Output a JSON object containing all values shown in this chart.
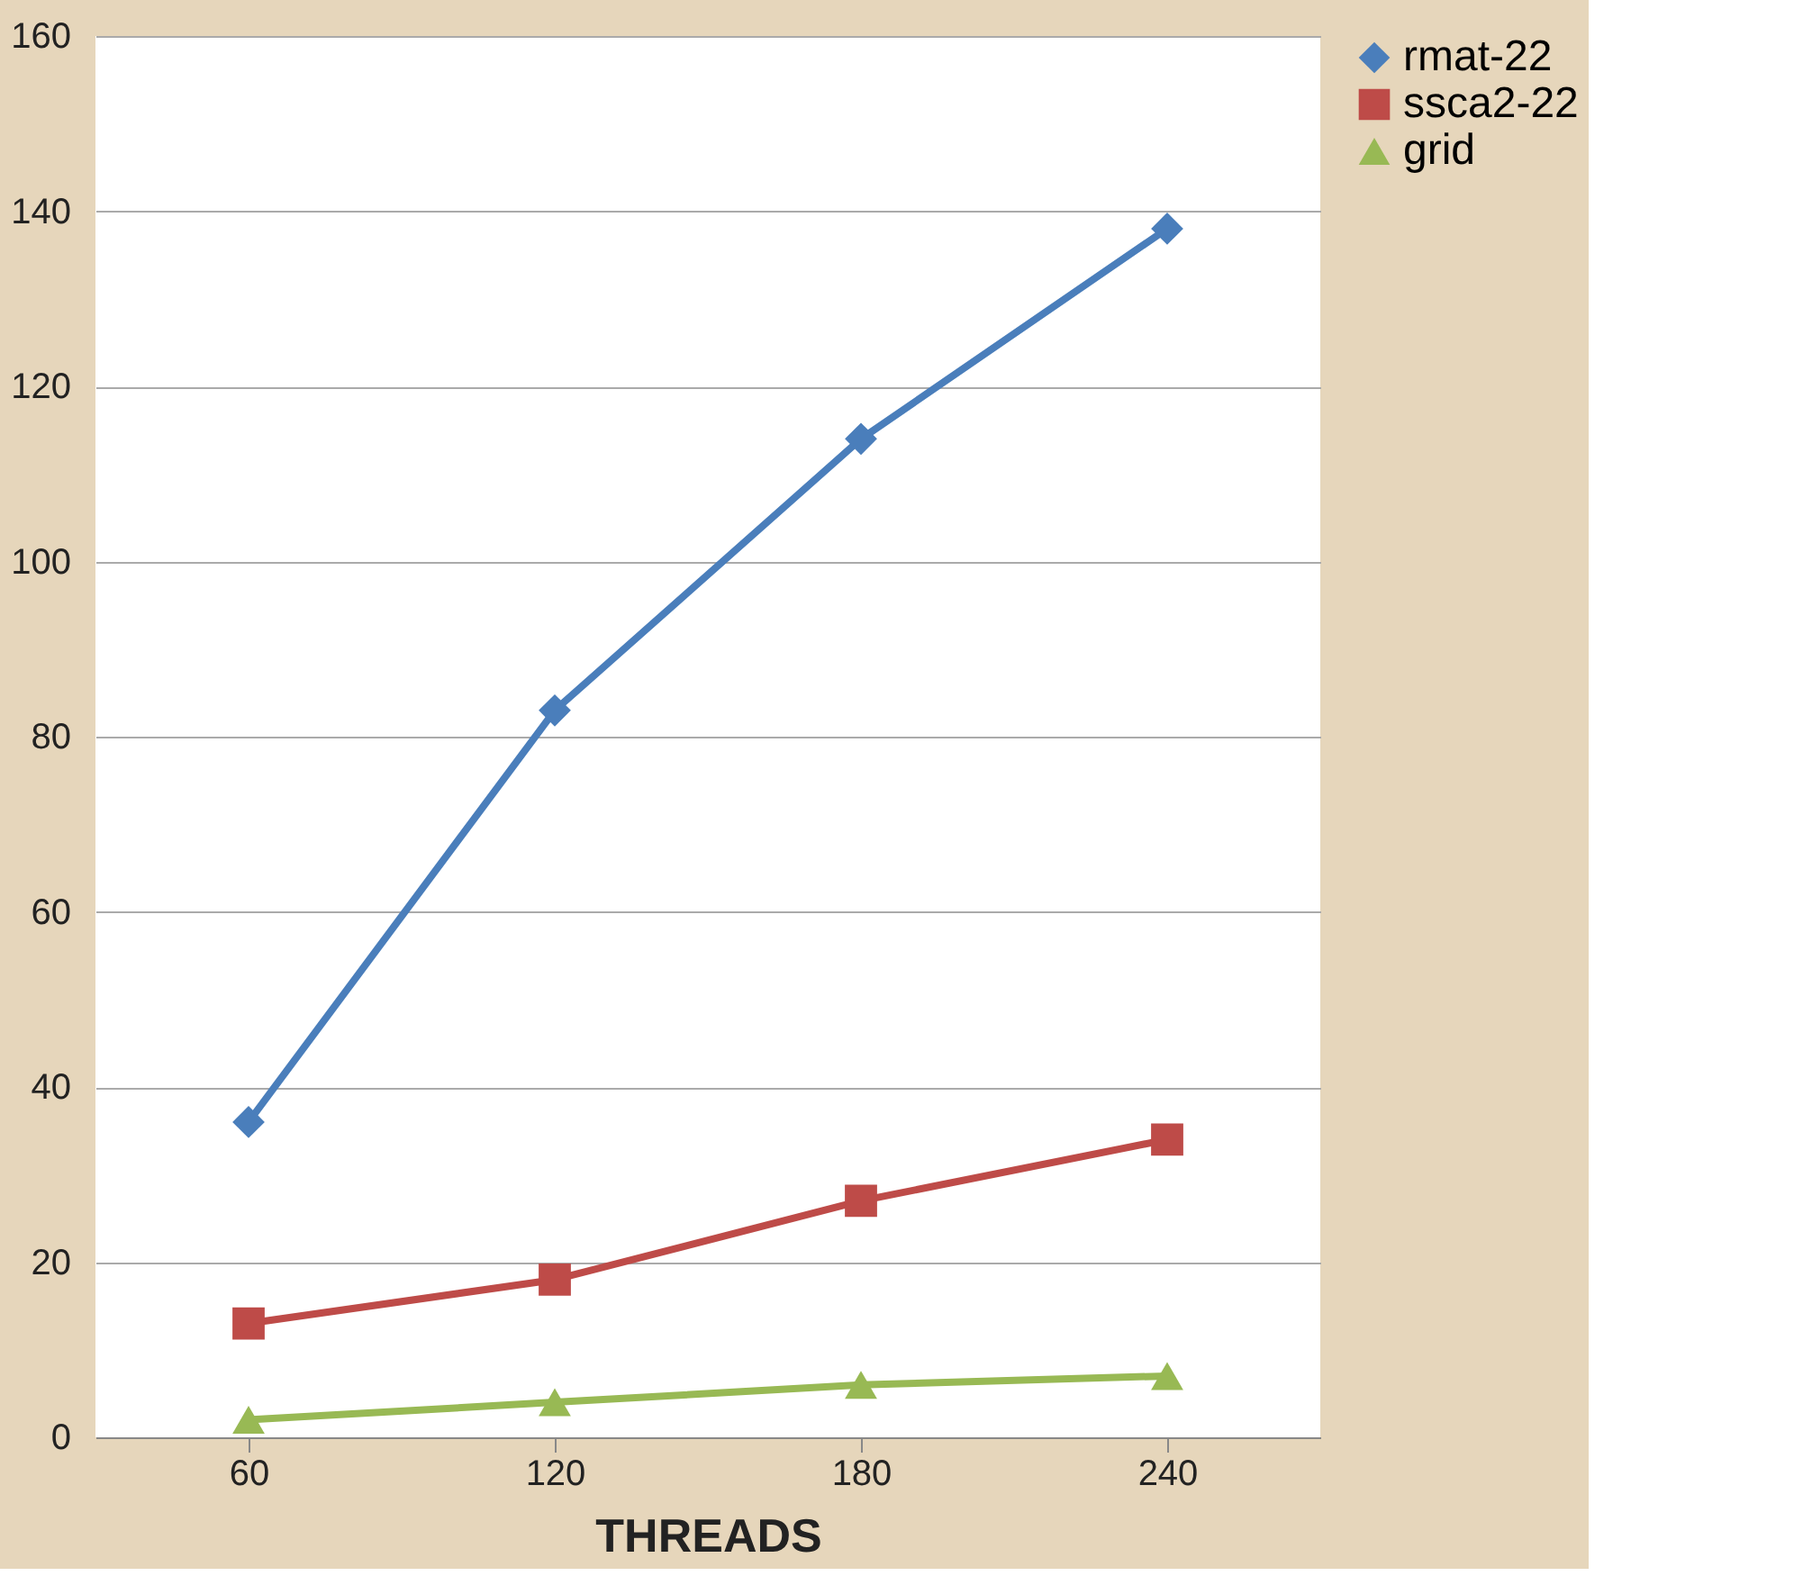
{
  "chart_data": {
    "type": "line",
    "xlabel": "THREADS",
    "categories": [
      "60",
      "120",
      "180",
      "240"
    ],
    "series": [
      {
        "name": "rmat-22",
        "color": "#4a7ebb",
        "marker": "diamond",
        "values": [
          36,
          83,
          114,
          138
        ]
      },
      {
        "name": "ssca2-22",
        "color": "#be4b48",
        "marker": "square",
        "values": [
          13,
          18,
          27,
          34
        ]
      },
      {
        "name": "grid",
        "color": "#98b954",
        "marker": "triangle",
        "values": [
          2,
          4,
          6,
          7
        ]
      }
    ],
    "ylim": [
      0,
      160
    ],
    "yticks": [
      0,
      20,
      40,
      60,
      80,
      100,
      120,
      140,
      160
    ],
    "grid": "y",
    "legend": "right"
  }
}
